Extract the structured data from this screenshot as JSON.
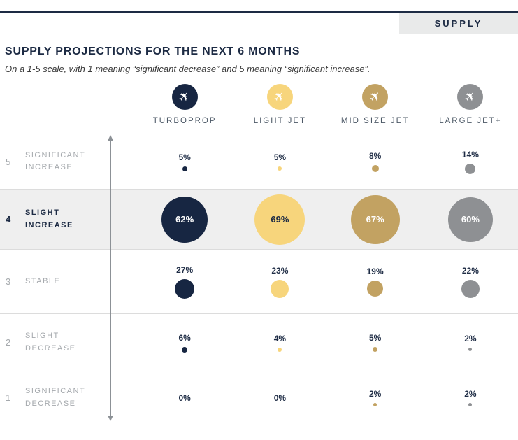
{
  "header": {
    "tab_label": "SUPPLY",
    "title": "SUPPLY PROJECTIONS FOR THE NEXT 6 MONTHS",
    "subtitle": "On a 1-5 scale, with 1 meaning “significant decrease” and 5 meaning “significant increase”."
  },
  "icons": {
    "plane": "✈"
  },
  "colors": {
    "navy": "#172642",
    "light_jet_yellow": "#f7d57c",
    "mid_size_tan": "#c2a262",
    "large_jet_gray": "#8e9093",
    "highlight_row": "#efefef",
    "grid_line": "#dcdcdc"
  },
  "columns": [
    {
      "label": "TURBOPROP",
      "color": "#172642"
    },
    {
      "label": "LIGHT JET",
      "color": "#f7d57c"
    },
    {
      "label": "MID SIZE JET",
      "color": "#c2a262"
    },
    {
      "label": "LARGE JET+",
      "color": "#8e9093"
    }
  ],
  "rows": [
    {
      "scale": "5",
      "label": "SIGNIFICANT INCREASE",
      "values": [
        "5%",
        "5%",
        "8%",
        "14%"
      ]
    },
    {
      "scale": "4",
      "label": "SLIGHT INCREASE",
      "values": [
        "62%",
        "69%",
        "67%",
        "60%"
      ]
    },
    {
      "scale": "3",
      "label": "STABLE",
      "values": [
        "27%",
        "23%",
        "19%",
        "22%"
      ]
    },
    {
      "scale": "2",
      "label": "SLIGHT DECREASE",
      "values": [
        "6%",
        "4%",
        "5%",
        "2%"
      ]
    },
    {
      "scale": "1",
      "label": "SIGNIFICANT DECREASE",
      "values": [
        "0%",
        "0%",
        "2%",
        "2%"
      ]
    }
  ],
  "chart_data": {
    "type": "bubble",
    "title": "SUPPLY PROJECTIONS FOR THE NEXT 6 MONTHS",
    "subtitle": "On a 1-5 scale, with 1 meaning “significant decrease” and 5 meaning “significant increase”.",
    "categories": [
      "TURBOPROP",
      "LIGHT JET",
      "MID SIZE JET",
      "LARGE JET+"
    ],
    "scale_levels": [
      {
        "level": 5,
        "label": "SIGNIFICANT INCREASE"
      },
      {
        "level": 4,
        "label": "SLIGHT INCREASE"
      },
      {
        "level": 3,
        "label": "STABLE"
      },
      {
        "level": 2,
        "label": "SLIGHT DECREASE"
      },
      {
        "level": 1,
        "label": "SIGNIFICANT DECREASE"
      }
    ],
    "series": [
      {
        "name": "TURBOPROP",
        "values_pct_by_level_5_to_1": [
          5,
          62,
          27,
          6,
          0
        ]
      },
      {
        "name": "LIGHT JET",
        "values_pct_by_level_5_to_1": [
          5,
          69,
          23,
          4,
          0
        ]
      },
      {
        "name": "MID SIZE JET",
        "values_pct_by_level_5_to_1": [
          8,
          67,
          19,
          5,
          2
        ]
      },
      {
        "name": "LARGE JET+",
        "values_pct_by_level_5_to_1": [
          14,
          60,
          22,
          2,
          2
        ]
      }
    ],
    "value_unit": "%",
    "highlighted_level": 4,
    "legend_position": "top",
    "grid": "horizontal-lines"
  }
}
